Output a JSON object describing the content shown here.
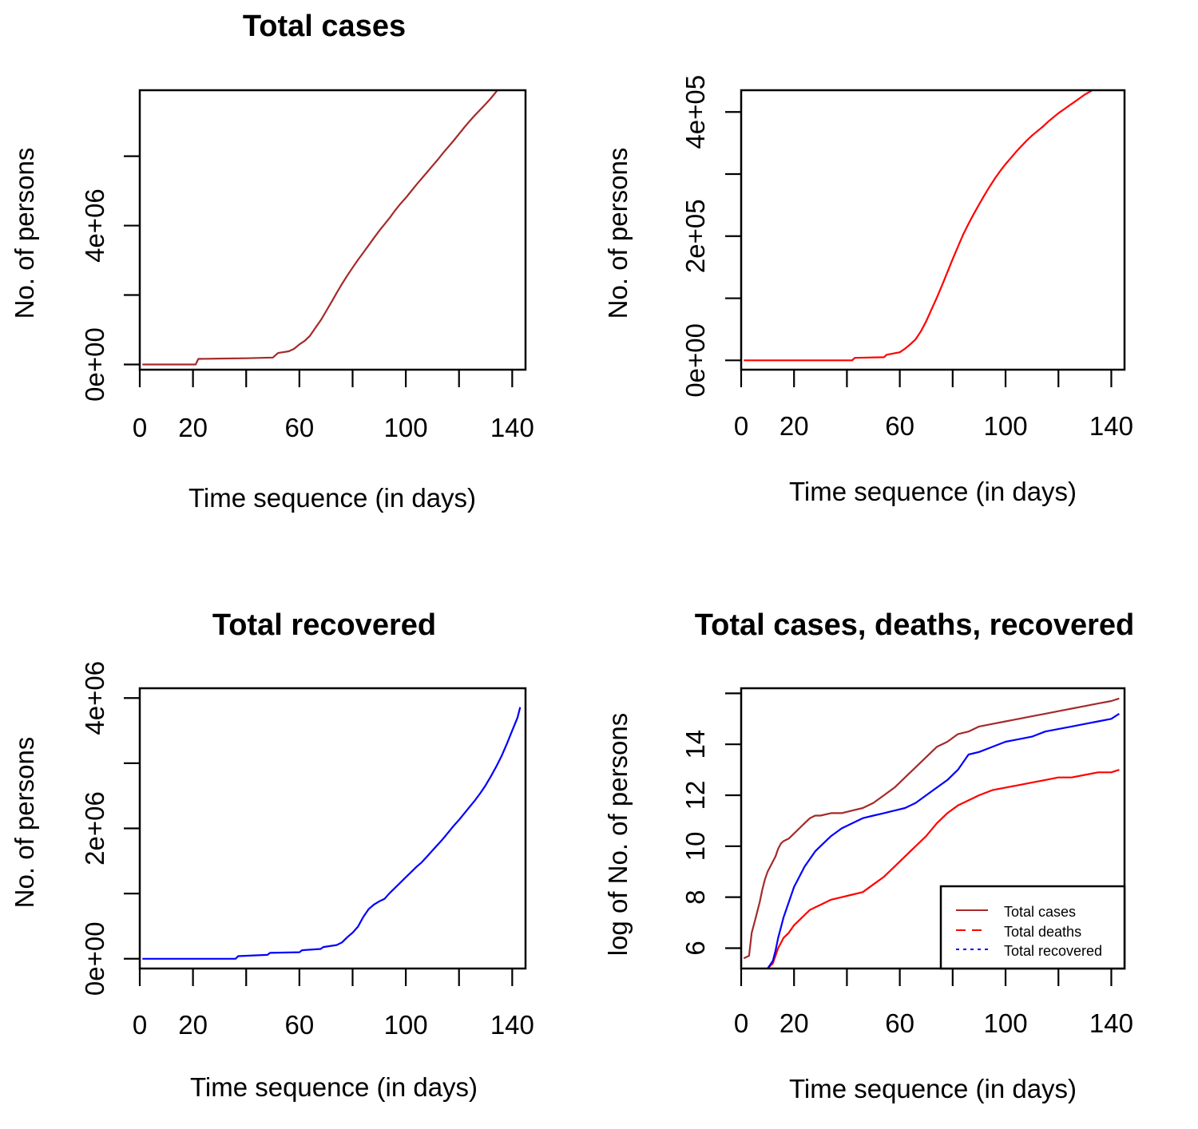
{
  "chart_data": [
    {
      "type": "line",
      "title": "Total cases",
      "xlabel": "Time sequence (in days)",
      "ylabel": "No. of persons",
      "xlim": [
        0,
        145
      ],
      "ylim": [
        -150000,
        7900000
      ],
      "x_ticks": [
        0,
        20,
        40,
        60,
        80,
        100,
        120,
        140
      ],
      "x_tick_labels": [
        "0",
        "20",
        "",
        "60",
        "",
        "100",
        "",
        "140"
      ],
      "y_ticks": [
        0,
        2000000,
        4000000,
        6000000
      ],
      "y_tick_labels": [
        "0e+00",
        "",
        "4e+06",
        ""
      ],
      "grid": false,
      "series": [
        {
          "name": "Total cases",
          "color": "#A52A2A",
          "x": [
            1,
            10,
            21,
            22,
            30,
            40,
            50,
            52,
            56,
            58,
            60,
            62,
            64,
            66,
            68,
            70,
            72,
            74,
            76,
            78,
            80,
            82,
            84,
            86,
            88,
            90,
            92,
            94,
            96,
            98,
            100,
            102,
            104,
            106,
            108,
            110,
            112,
            114,
            116,
            118,
            120,
            122,
            124,
            126,
            128,
            130,
            132,
            134,
            136,
            138,
            140,
            142,
            143
          ],
          "values": [
            0,
            0,
            0,
            160000,
            170000,
            180000,
            200000,
            330000,
            380000,
            450000,
            580000,
            680000,
            830000,
            1050000,
            1270000,
            1530000,
            1790000,
            2060000,
            2320000,
            2560000,
            2790000,
            3010000,
            3220000,
            3430000,
            3640000,
            3850000,
            4040000,
            4230000,
            4440000,
            4630000,
            4800000,
            4990000,
            5180000,
            5360000,
            5540000,
            5720000,
            5900000,
            6090000,
            6270000,
            6450000,
            6640000,
            6830000,
            7010000,
            7180000,
            7340000,
            7500000,
            7670000,
            7860000,
            8040000,
            8200000,
            8380000,
            8500000,
            8560000
          ]
        }
      ]
    },
    {
      "type": "line",
      "title": "",
      "xlabel": "Time sequence (in days)",
      "ylabel": "No. of persons",
      "xlim": [
        0,
        145
      ],
      "ylim": [
        -15000,
        435000
      ],
      "x_ticks": [
        0,
        20,
        40,
        60,
        80,
        100,
        120,
        140
      ],
      "x_tick_labels": [
        "0",
        "20",
        "",
        "60",
        "",
        "100",
        "",
        "140"
      ],
      "y_ticks": [
        0,
        100000,
        200000,
        300000,
        400000
      ],
      "y_tick_labels": [
        "0e+00",
        "",
        "2e+05",
        "",
        "4e+05"
      ],
      "grid": false,
      "series": [
        {
          "name": "Total deaths",
          "color": "#FF0000",
          "x": [
            1,
            20,
            42,
            43,
            54,
            55,
            60,
            62,
            64,
            66,
            68,
            70,
            72,
            74,
            76,
            78,
            80,
            82,
            84,
            86,
            88,
            90,
            92,
            94,
            96,
            98,
            100,
            102,
            104,
            106,
            108,
            110,
            112,
            114,
            116,
            118,
            120,
            122,
            124,
            126,
            128,
            130,
            132,
            134,
            136,
            138,
            140,
            142,
            143
          ],
          "values": [
            0,
            0,
            0,
            4000,
            5000,
            9000,
            13000,
            19000,
            26000,
            34000,
            47000,
            63000,
            82000,
            101000,
            121000,
            142000,
            163000,
            183000,
            203000,
            220000,
            236000,
            251000,
            266000,
            280000,
            293000,
            305000,
            316000,
            326000,
            336000,
            345000,
            354000,
            362000,
            369000,
            376000,
            384000,
            391000,
            398000,
            404000,
            410000,
            416000,
            422000,
            428000,
            433000,
            438000,
            443000,
            448000,
            452000,
            456000,
            459000
          ]
        }
      ]
    },
    {
      "type": "line",
      "title": "Total recovered",
      "xlabel": "Time sequence (in days)",
      "ylabel": "No. of persons",
      "xlim": [
        0,
        145
      ],
      "ylim": [
        -150000,
        4150000
      ],
      "x_ticks": [
        0,
        20,
        40,
        60,
        80,
        100,
        120,
        140
      ],
      "x_tick_labels": [
        "0",
        "20",
        "",
        "60",
        "",
        "100",
        "",
        "140"
      ],
      "y_ticks": [
        0,
        1000000,
        2000000,
        3000000,
        4000000
      ],
      "y_tick_labels": [
        "0e+00",
        "",
        "2e+06",
        "",
        "4e+06"
      ],
      "grid": false,
      "series": [
        {
          "name": "Total recovered",
          "color": "#0000FF",
          "x": [
            1,
            20,
            36,
            37,
            48,
            49,
            60,
            61,
            68,
            69,
            74,
            76,
            78,
            80,
            82,
            84,
            86,
            88,
            90,
            92,
            94,
            96,
            98,
            100,
            102,
            104,
            106,
            108,
            110,
            112,
            114,
            116,
            118,
            120,
            122,
            124,
            126,
            128,
            130,
            132,
            134,
            136,
            138,
            140,
            142,
            143
          ],
          "values": [
            0,
            0,
            0,
            40000,
            60000,
            90000,
            100000,
            130000,
            150000,
            180000,
            210000,
            250000,
            330000,
            400000,
            490000,
            640000,
            760000,
            830000,
            880000,
            920000,
            1010000,
            1090000,
            1170000,
            1250000,
            1330000,
            1410000,
            1480000,
            1570000,
            1660000,
            1750000,
            1840000,
            1940000,
            2040000,
            2130000,
            2230000,
            2330000,
            2430000,
            2540000,
            2660000,
            2800000,
            2950000,
            3110000,
            3300000,
            3500000,
            3700000,
            3860000
          ]
        }
      ]
    },
    {
      "type": "line",
      "title": "Total cases, deaths, recovered",
      "xlabel": "Time sequence (in days)",
      "ylabel": "log of No. of persons",
      "xlim": [
        0,
        145
      ],
      "ylim": [
        5.2,
        16.2
      ],
      "x_ticks": [
        0,
        20,
        40,
        60,
        80,
        100,
        120,
        140
      ],
      "x_tick_labels": [
        "0",
        "20",
        "",
        "60",
        "",
        "100",
        "",
        "140"
      ],
      "y_ticks": [
        6,
        8,
        10,
        12,
        14,
        16
      ],
      "y_tick_labels": [
        "6",
        "8",
        "10",
        "12",
        "14",
        ""
      ],
      "grid": false,
      "legend": {
        "position": "bottom-right",
        "entries": [
          {
            "label": "Total cases",
            "color": "#A52A2A",
            "style": "solid"
          },
          {
            "label": "Total deaths",
            "color": "#FF0000",
            "style": "dashed"
          },
          {
            "label": "Total recovered",
            "color": "#0000FF",
            "style": "dotted"
          }
        ]
      },
      "series": [
        {
          "name": "Total cases",
          "color": "#A52A2A",
          "x": [
            1,
            3,
            4,
            5,
            6,
            7,
            8,
            9,
            10,
            11,
            12,
            13,
            14,
            15,
            16,
            18,
            20,
            22,
            24,
            26,
            28,
            30,
            34,
            38,
            42,
            46,
            50,
            54,
            58,
            62,
            66,
            70,
            74,
            78,
            82,
            86,
            90,
            95,
            100,
            105,
            110,
            115,
            120,
            125,
            130,
            135,
            140,
            143
          ],
          "values": [
            5.6,
            5.7,
            6.6,
            7.0,
            7.4,
            7.8,
            8.3,
            8.7,
            9.0,
            9.2,
            9.4,
            9.6,
            9.9,
            10.1,
            10.2,
            10.3,
            10.5,
            10.7,
            10.9,
            11.1,
            11.2,
            11.2,
            11.3,
            11.3,
            11.4,
            11.5,
            11.7,
            12.0,
            12.3,
            12.7,
            13.1,
            13.5,
            13.9,
            14.1,
            14.4,
            14.5,
            14.7,
            14.8,
            14.9,
            15.0,
            15.1,
            15.2,
            15.3,
            15.4,
            15.5,
            15.6,
            15.7,
            15.8
          ]
        },
        {
          "name": "Total deaths",
          "color": "#FF0000",
          "x": [
            10,
            12,
            13,
            14,
            15,
            16,
            18,
            20,
            22,
            24,
            26,
            28,
            30,
            34,
            38,
            42,
            46,
            50,
            54,
            58,
            62,
            66,
            70,
            74,
            78,
            82,
            86,
            90,
            95,
            100,
            105,
            110,
            115,
            120,
            125,
            130,
            135,
            140,
            143
          ],
          "values": [
            5.2,
            5.4,
            5.7,
            6.0,
            6.2,
            6.4,
            6.6,
            6.9,
            7.1,
            7.3,
            7.5,
            7.6,
            7.7,
            7.9,
            8.0,
            8.1,
            8.2,
            8.5,
            8.8,
            9.2,
            9.6,
            10.0,
            10.4,
            10.9,
            11.3,
            11.6,
            11.8,
            12.0,
            12.2,
            12.3,
            12.4,
            12.5,
            12.6,
            12.7,
            12.7,
            12.8,
            12.9,
            12.9,
            13.0
          ]
        },
        {
          "name": "Total recovered",
          "color": "#0000FF",
          "x": [
            10,
            12,
            13,
            14,
            15,
            16,
            18,
            20,
            22,
            24,
            26,
            28,
            30,
            34,
            38,
            42,
            46,
            50,
            54,
            58,
            62,
            66,
            70,
            74,
            78,
            82,
            86,
            90,
            95,
            100,
            105,
            110,
            115,
            120,
            125,
            130,
            135,
            140,
            143
          ],
          "values": [
            5.2,
            5.5,
            5.9,
            6.4,
            6.8,
            7.2,
            7.8,
            8.4,
            8.8,
            9.2,
            9.5,
            9.8,
            10.0,
            10.4,
            10.7,
            10.9,
            11.1,
            11.2,
            11.3,
            11.4,
            11.5,
            11.7,
            12.0,
            12.3,
            12.6,
            13.0,
            13.6,
            13.7,
            13.9,
            14.1,
            14.2,
            14.3,
            14.5,
            14.6,
            14.7,
            14.8,
            14.9,
            15.0,
            15.2
          ]
        }
      ]
    }
  ]
}
